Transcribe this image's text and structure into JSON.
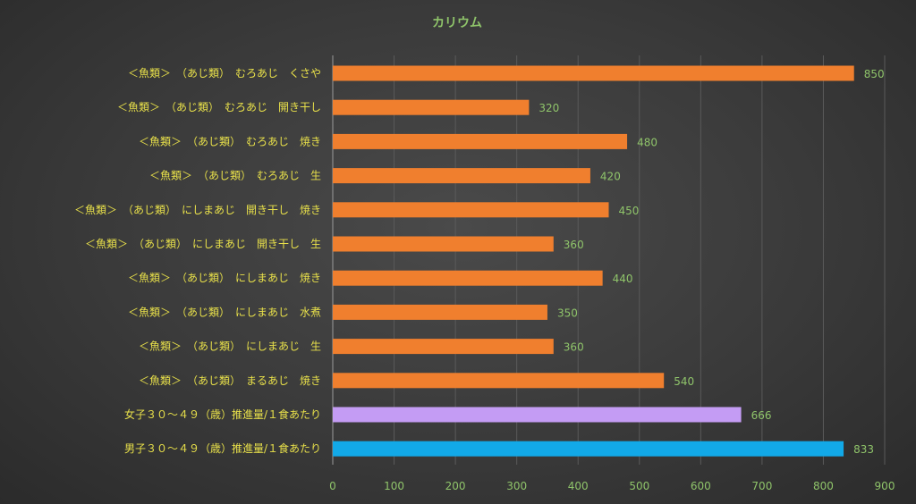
{
  "chart_data": {
    "type": "bar",
    "orientation": "horizontal",
    "title": "カリウム",
    "xlabel": "",
    "ylabel": "",
    "xlim": [
      0,
      900
    ],
    "x_ticks": [
      0,
      100,
      200,
      300,
      400,
      500,
      600,
      700,
      800,
      900
    ],
    "grid": true,
    "legend": "none",
    "categories": [
      "＜魚類＞　（あじ類）　むろあじ　くさや",
      "＜魚類＞　（あじ類）　むろあじ　開き干し",
      "＜魚類＞　（あじ類）　むろあじ　焼き",
      "＜魚類＞　（あじ類）　むろあじ　生",
      "＜魚類＞　（あじ類）　にしまあじ　開き干し　焼き",
      "＜魚類＞　（あじ類）　にしまあじ　開き干し　生",
      "＜魚類＞　（あじ類）　にしまあじ　焼き",
      "＜魚類＞　（あじ類）　にしまあじ　水煮",
      "＜魚類＞　（あじ類）　にしまあじ　生",
      "＜魚類＞　（あじ類）　まるあじ　焼き",
      "女子３０～４９（歳）推進量/１食あたり",
      "男子３０～４９（歳）推進量/１食あたり"
    ],
    "values": [
      850,
      320,
      480,
      420,
      450,
      360,
      440,
      350,
      360,
      540,
      666,
      833
    ],
    "bar_colors": [
      "#f07f2e",
      "#f07f2e",
      "#f07f2e",
      "#f07f2e",
      "#f07f2e",
      "#f07f2e",
      "#f07f2e",
      "#f07f2e",
      "#f07f2e",
      "#f07f2e",
      "#c49cf4",
      "#12a9e8"
    ],
    "colors": {
      "label_text": "#e8e04a",
      "tick_text": "#8fc46a",
      "data_label_text": "#8fc46a",
      "title_text": "#8fc46a",
      "gridline": "#5a5a5a",
      "axis_line": "#9a9a9a"
    }
  }
}
